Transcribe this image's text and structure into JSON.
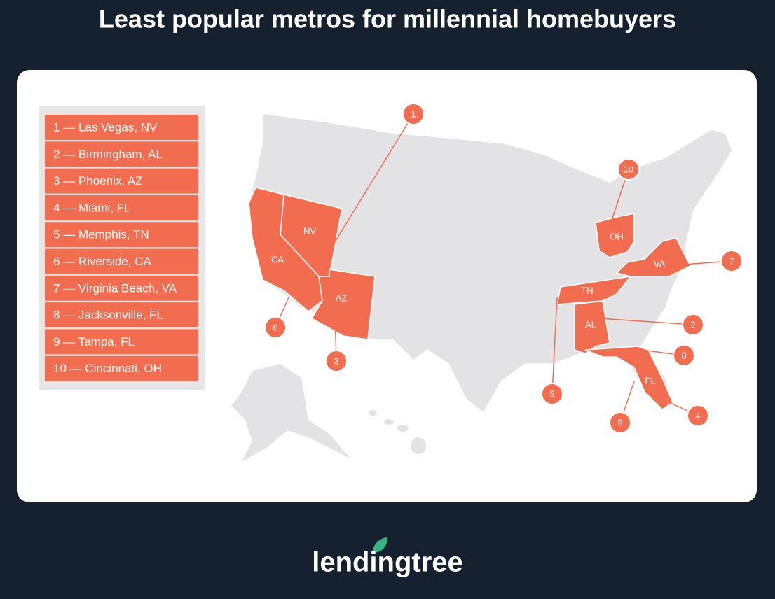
{
  "header": {
    "title": "Least popular metros for millennial homebuyers"
  },
  "legend": {
    "items": [
      "1 — Las Vegas, NV",
      "2 — Birmingham, AL",
      "3 — Phoenix, AZ",
      "4 — Miami, FL",
      "5 — Memphis, TN",
      "6 — Riverside, CA",
      "7 — Virginia Beach, VA",
      "8 — Jacksonville, FL",
      "9 — Tampa, FL",
      "10 — Cincinnati, OH"
    ]
  },
  "map": {
    "states": [
      "NV",
      "CA",
      "AZ",
      "OH",
      "VA",
      "TN",
      "AL",
      "FL"
    ],
    "markers": [
      "1",
      "2",
      "3",
      "4",
      "5",
      "6",
      "7",
      "8",
      "9",
      "10"
    ]
  },
  "footer": {
    "logo": "lendingtree"
  }
}
